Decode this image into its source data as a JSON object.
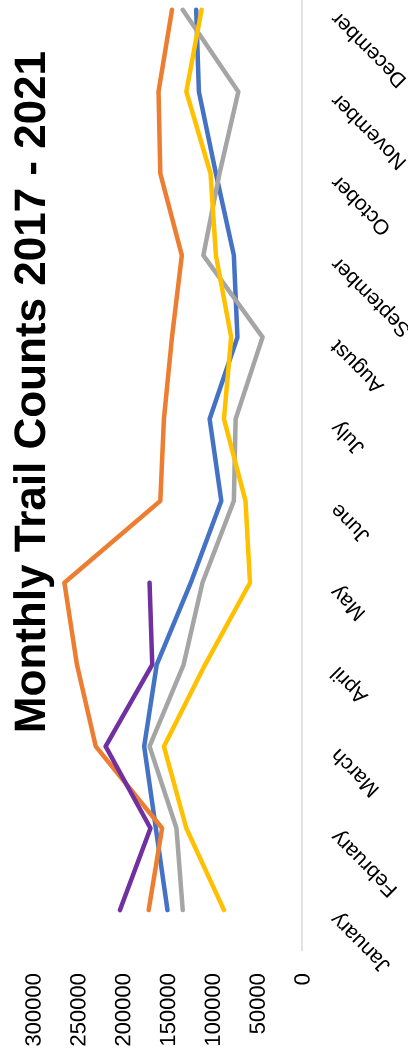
{
  "chart_data": {
    "type": "line",
    "title": "Monthly Trail Counts 2017 - 2021",
    "orientation": "horizontal",
    "categories": [
      "December",
      "November",
      "October",
      "September",
      "August",
      "July",
      "June",
      "May",
      "April",
      "March",
      "February",
      "January"
    ],
    "series": [
      {
        "color": "#4472c4",
        "values": [
          118000,
          115000,
          96000,
          76000,
          72000,
          103000,
          90000,
          124000,
          162000,
          176000,
          163000,
          150000
        ]
      },
      {
        "color": "#ed7d31",
        "values": [
          145000,
          160000,
          158000,
          134000,
          145000,
          154000,
          158000,
          265000,
          251000,
          230000,
          156000,
          171000
        ]
      },
      {
        "color": "#a5a5a5",
        "values": [
          133000,
          71000,
          92000,
          110000,
          44000,
          74000,
          76000,
          111000,
          132000,
          170000,
          140000,
          133000
        ]
      },
      {
        "color": "#ffc000",
        "values": [
          112000,
          129000,
          102000,
          96000,
          79000,
          87000,
          63000,
          58000,
          108000,
          154000,
          129000,
          87000
        ]
      },
      {
        "color": "#7030a0",
        "values": [
          null,
          null,
          null,
          null,
          null,
          null,
          null,
          170000,
          167000,
          219000,
          169000,
          203000
        ]
      }
    ],
    "xlim": [
      300000,
      0
    ],
    "xticks": [
      300000,
      250000,
      200000,
      150000,
      100000,
      50000,
      0
    ],
    "grid": false,
    "marker": "none",
    "line_style": "solid"
  }
}
